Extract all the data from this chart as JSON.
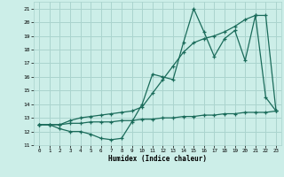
{
  "xlabel": "Humidex (Indice chaleur)",
  "xlim": [
    -0.5,
    23.5
  ],
  "ylim": [
    11,
    21.5
  ],
  "yticks": [
    11,
    12,
    13,
    14,
    15,
    16,
    17,
    18,
    19,
    20,
    21
  ],
  "xticks": [
    0,
    1,
    2,
    3,
    4,
    5,
    6,
    7,
    8,
    9,
    10,
    11,
    12,
    13,
    14,
    15,
    16,
    17,
    18,
    19,
    20,
    21,
    22,
    23
  ],
  "bg_color": "#cceee8",
  "grid_color": "#aad4ce",
  "line_color": "#1a6b5a",
  "line1_x": [
    0,
    1,
    2,
    3,
    4,
    5,
    6,
    7,
    8,
    9,
    10,
    11,
    12,
    13,
    14,
    15,
    16,
    17,
    18,
    19,
    20,
    21,
    22,
    23
  ],
  "line1_y": [
    12.5,
    12.5,
    12.2,
    12.0,
    12.0,
    11.8,
    11.5,
    11.4,
    11.5,
    12.7,
    14.0,
    16.2,
    16.0,
    15.8,
    18.5,
    21.0,
    19.3,
    17.5,
    18.8,
    19.4,
    17.2,
    20.5,
    14.5,
    13.5
  ],
  "line2_x": [
    0,
    1,
    2,
    3,
    4,
    5,
    6,
    7,
    8,
    9,
    10,
    11,
    12,
    13,
    14,
    15,
    16,
    17,
    18,
    19,
    20,
    21,
    22,
    23
  ],
  "line2_y": [
    12.5,
    12.5,
    12.5,
    12.8,
    13.0,
    13.1,
    13.2,
    13.3,
    13.4,
    13.5,
    13.8,
    14.8,
    15.8,
    16.8,
    17.8,
    18.5,
    18.8,
    19.0,
    19.3,
    19.7,
    20.2,
    20.5,
    20.5,
    13.5
  ],
  "line3_x": [
    0,
    1,
    2,
    3,
    4,
    5,
    6,
    7,
    8,
    9,
    10,
    11,
    12,
    13,
    14,
    15,
    16,
    17,
    18,
    19,
    20,
    21,
    22,
    23
  ],
  "line3_y": [
    12.5,
    12.5,
    12.5,
    12.6,
    12.6,
    12.7,
    12.7,
    12.7,
    12.8,
    12.8,
    12.9,
    12.9,
    13.0,
    13.0,
    13.1,
    13.1,
    13.2,
    13.2,
    13.3,
    13.3,
    13.4,
    13.4,
    13.4,
    13.5
  ]
}
